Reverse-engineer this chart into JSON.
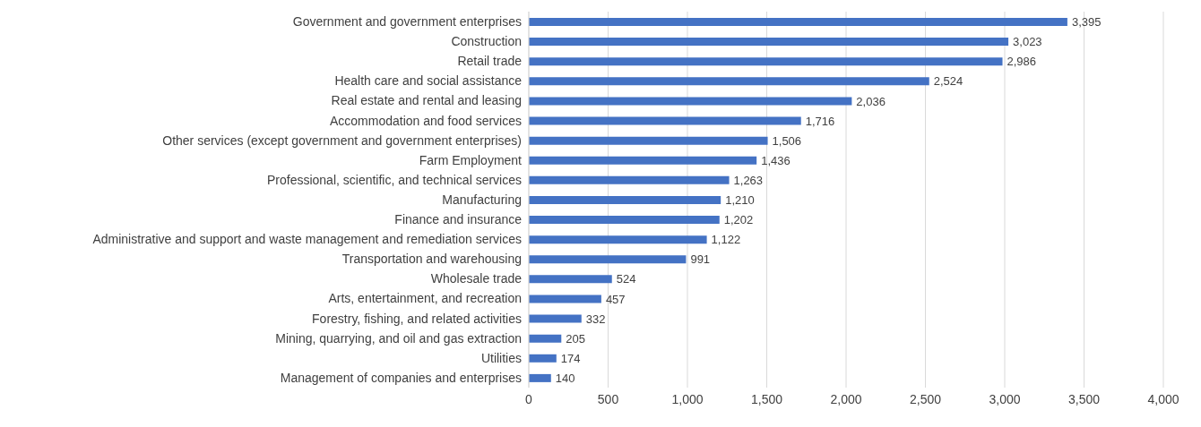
{
  "chart_data": {
    "type": "bar",
    "orientation": "horizontal",
    "categories": [
      "Government and government enterprises",
      "Construction",
      "Retail trade",
      "Health care and social assistance",
      "Real estate and rental and leasing",
      "Accommodation and food services",
      "Other services (except government and government enterprises)",
      "Farm Employment",
      "Professional, scientific, and technical services",
      "Manufacturing",
      "Finance and insurance",
      "Administrative and support and waste management and remediation services",
      "Transportation and warehousing",
      "Wholesale trade",
      "Arts, entertainment, and recreation",
      "Forestry, fishing, and related activities",
      "Mining, quarrying, and oil and gas extraction",
      "Utilities",
      "Management of companies and enterprises"
    ],
    "values": [
      3395,
      3023,
      2986,
      2524,
      2036,
      1716,
      1506,
      1436,
      1263,
      1210,
      1202,
      1122,
      991,
      524,
      457,
      332,
      205,
      174,
      140
    ],
    "value_labels": [
      "3,395",
      "3,023",
      "2,986",
      "2,524",
      "2,036",
      "1,716",
      "1,506",
      "1,436",
      "1,263",
      "1,210",
      "1,202",
      "1,122",
      "991",
      "524",
      "457",
      "332",
      "205",
      "174",
      "140"
    ],
    "color": "#4472c4",
    "xlim": [
      0,
      4000
    ],
    "xticks": [
      0,
      500,
      {
        "value": 1000,
        "label": "1,000"
      },
      {
        "value": 1500,
        "label": "1,500"
      },
      {
        "value": 2000,
        "label": "2,000"
      },
      {
        "value": 2500,
        "label": "2,500"
      },
      {
        "value": 3000,
        "label": "3,000"
      },
      {
        "value": 3500,
        "label": "3,500"
      },
      {
        "value": 4000,
        "label": "4,000"
      }
    ],
    "grid": "x"
  }
}
